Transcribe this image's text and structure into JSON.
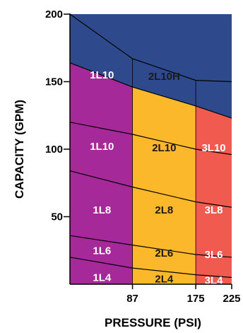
{
  "chart_data": {
    "type": "area",
    "title": "",
    "xlabel": "PRESSURE (PSI)",
    "ylabel": "CAPACITY (GPM)",
    "xlim": [
      0,
      225
    ],
    "ylim": [
      0,
      200
    ],
    "x_ticks": [
      {
        "value": 87,
        "label": "87"
      },
      {
        "value": 175,
        "label": "175"
      },
      {
        "value": 225,
        "label": "225"
      }
    ],
    "y_ticks": [
      {
        "value": 50,
        "label": "50"
      },
      {
        "value": 100,
        "label": "100"
      },
      {
        "value": 150,
        "label": "150"
      },
      {
        "value": 200,
        "label": "200"
      }
    ],
    "colors": {
      "background": "#2e4a8c",
      "purple": "#a6299a",
      "orange": "#fbb82b",
      "red": "#f15a4f",
      "label_light": "#ffffff",
      "label_dark": "#1a1a1a",
      "edge": "#000000"
    },
    "boundaries": {
      "b0": [
        [
          0,
          0
        ],
        [
          225,
          0
        ]
      ],
      "b1": [
        [
          0,
          20
        ],
        [
          87,
          12
        ],
        [
          175,
          7
        ],
        [
          225,
          5
        ]
      ],
      "b2": [
        [
          0,
          36
        ],
        [
          87,
          29
        ],
        [
          175,
          22
        ],
        [
          225,
          20
        ]
      ],
      "b3": [
        [
          0,
          84
        ],
        [
          87,
          72
        ],
        [
          175,
          61
        ],
        [
          225,
          57
        ]
      ],
      "b4": [
        [
          0,
          120
        ],
        [
          87,
          111
        ],
        [
          175,
          100
        ],
        [
          225,
          96
        ]
      ],
      "b5": [
        [
          0,
          164
        ],
        [
          87,
          146
        ],
        [
          175,
          132
        ],
        [
          225,
          123
        ]
      ],
      "b6": [
        [
          0,
          200
        ],
        [
          87,
          167
        ],
        [
          175,
          151
        ],
        [
          225,
          150
        ]
      ]
    },
    "bands": [
      {
        "id": "band-1",
        "lower": "b0",
        "upper": "b1",
        "labels": [
          "1L4",
          "2L4",
          "3L4"
        ],
        "label_y": [
          5,
          4,
          3
        ]
      },
      {
        "id": "band-2",
        "lower": "b1",
        "upper": "b2",
        "labels": [
          "1L6",
          "2L6",
          "3L6"
        ],
        "label_y": [
          25,
          23,
          22
        ]
      },
      {
        "id": "band-3",
        "lower": "b2",
        "upper": "b3",
        "labels": [
          "1L8",
          "2L8",
          "3L8"
        ],
        "label_y": [
          55,
          55,
          55
        ]
      },
      {
        "id": "band-4",
        "lower": "b3",
        "upper": "b4",
        "labels": [
          "1L10",
          "2L10",
          "3L10"
        ],
        "label_y": [
          102,
          101,
          101
        ]
      },
      {
        "id": "band-5",
        "lower": "b4",
        "upper": "b5",
        "labels": [
          "1L10",
          "2L10H",
          ""
        ],
        "label_y": [
          155,
          154,
          0
        ]
      }
    ],
    "columns": [
      {
        "name": "1",
        "x_range": [
          0,
          87
        ],
        "color_key": "purple",
        "label_color_key": "label_light"
      },
      {
        "name": "2",
        "x_range": [
          87,
          175
        ],
        "color_key": "orange",
        "label_color_key": "label_dark"
      },
      {
        "name": "3",
        "x_range": [
          175,
          225
        ],
        "color_key": "red",
        "label_color_key": "label_light"
      }
    ],
    "grid": false,
    "legend": "none"
  }
}
